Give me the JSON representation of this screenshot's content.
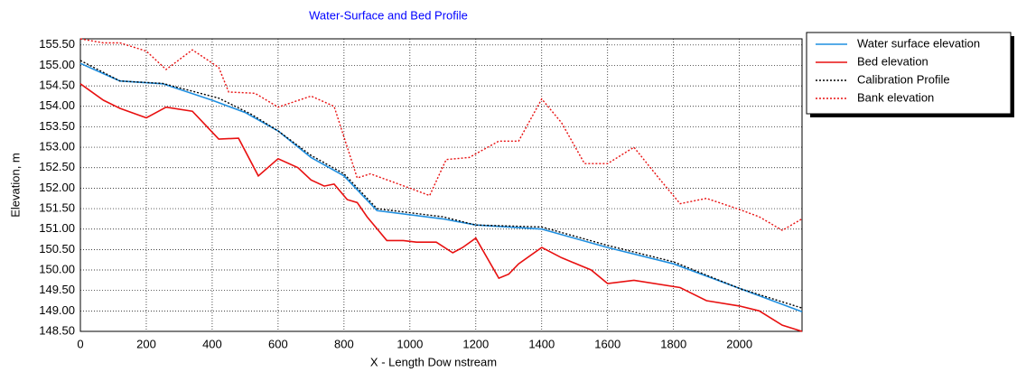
{
  "chart_data": {
    "type": "line",
    "title": "Water-Surface and Bed Profile",
    "title_color": "#0000ff",
    "x_label": "X - Length Dow nstream",
    "y_label": "Elevation, m",
    "xlim": [
      0,
      2190
    ],
    "xticks": [
      0,
      200,
      400,
      600,
      800,
      1000,
      1200,
      1400,
      1600,
      1800,
      2000
    ],
    "ylim": [
      148.5,
      155.65
    ],
    "yticks": [
      {
        "value": 148.5,
        "label": "148.50"
      },
      {
        "value": 149,
        "label": "149.00"
      },
      {
        "value": 149.5,
        "label": "149.50"
      },
      {
        "value": 150,
        "label": "150.00"
      },
      {
        "value": 150.5,
        "label": "150.50"
      },
      {
        "value": 151,
        "label": "151.00"
      },
      {
        "value": 151.5,
        "label": "151.50"
      },
      {
        "value": 152,
        "label": "152.00"
      },
      {
        "value": 152.5,
        "label": "152.50"
      },
      {
        "value": 153,
        "label": "153.00"
      },
      {
        "value": 153.5,
        "label": "153.50"
      },
      {
        "value": 154,
        "label": "154.00"
      },
      {
        "value": 154.5,
        "label": "154.50"
      },
      {
        "value": 155,
        "label": "155.00"
      },
      {
        "value": 155.5,
        "label": "155.50"
      }
    ],
    "grid": true,
    "legend": "right",
    "series": [
      {
        "name": "Water surface elevation",
        "color": "#1f8fe0",
        "dash": "solid",
        "x": [
          0,
          120,
          250,
          400,
          500,
          600,
          700,
          800,
          900,
          1100,
          1200,
          1400,
          1600,
          1800,
          2000,
          2190
        ],
        "values": [
          155.05,
          154.62,
          154.55,
          154.15,
          153.85,
          153.4,
          152.75,
          152.3,
          151.45,
          151.25,
          151.1,
          151.0,
          150.55,
          150.15,
          149.55,
          148.98
        ]
      },
      {
        "name": "Bed elevation",
        "color": "#e81010",
        "dash": "solid",
        "x": [
          0,
          70,
          120,
          200,
          260,
          340,
          420,
          480,
          540,
          600,
          660,
          700,
          740,
          770,
          810,
          840,
          870,
          930,
          980,
          1020,
          1080,
          1130,
          1160,
          1200,
          1270,
          1300,
          1330,
          1400,
          1460,
          1520,
          1550,
          1600,
          1680,
          1820,
          1900,
          2000,
          2060,
          2130,
          2190
        ],
        "values": [
          154.55,
          154.15,
          153.95,
          153.72,
          153.98,
          153.88,
          153.2,
          153.22,
          152.3,
          152.72,
          152.5,
          152.2,
          152.05,
          152.1,
          151.72,
          151.65,
          151.3,
          150.72,
          150.72,
          150.68,
          150.68,
          150.42,
          150.55,
          150.78,
          149.8,
          149.9,
          150.15,
          150.55,
          150.3,
          150.1,
          150.0,
          149.67,
          149.75,
          149.57,
          149.25,
          149.12,
          149.0,
          148.65,
          148.5
        ]
      },
      {
        "name": "Calibration Profile",
        "color": "#000000",
        "dash": "dotted",
        "x": [
          0,
          120,
          250,
          420,
          520,
          600,
          700,
          800,
          900,
          1100,
          1200,
          1400,
          1600,
          1800,
          2000,
          2190
        ],
        "values": [
          155.12,
          154.62,
          154.56,
          154.2,
          153.8,
          153.4,
          152.8,
          152.35,
          151.5,
          151.3,
          151.1,
          151.05,
          150.6,
          150.2,
          149.55,
          149.07
        ]
      },
      {
        "name": "Bank elevation",
        "color": "#e81010",
        "dash": "dotted",
        "x": [
          0,
          70,
          120,
          200,
          260,
          340,
          420,
          450,
          530,
          600,
          700,
          770,
          810,
          840,
          880,
          1000,
          1060,
          1110,
          1180,
          1270,
          1330,
          1400,
          1460,
          1530,
          1600,
          1680,
          1760,
          1820,
          1900,
          2000,
          2060,
          2130,
          2190
        ],
        "values": [
          155.65,
          155.55,
          155.55,
          155.35,
          154.9,
          155.38,
          154.95,
          154.35,
          154.32,
          153.98,
          154.25,
          154.0,
          153.0,
          152.25,
          152.35,
          152.0,
          151.82,
          152.7,
          152.75,
          153.15,
          153.15,
          154.18,
          153.6,
          152.6,
          152.6,
          153.0,
          152.2,
          151.62,
          151.75,
          151.48,
          151.3,
          150.97,
          151.25
        ]
      }
    ]
  }
}
